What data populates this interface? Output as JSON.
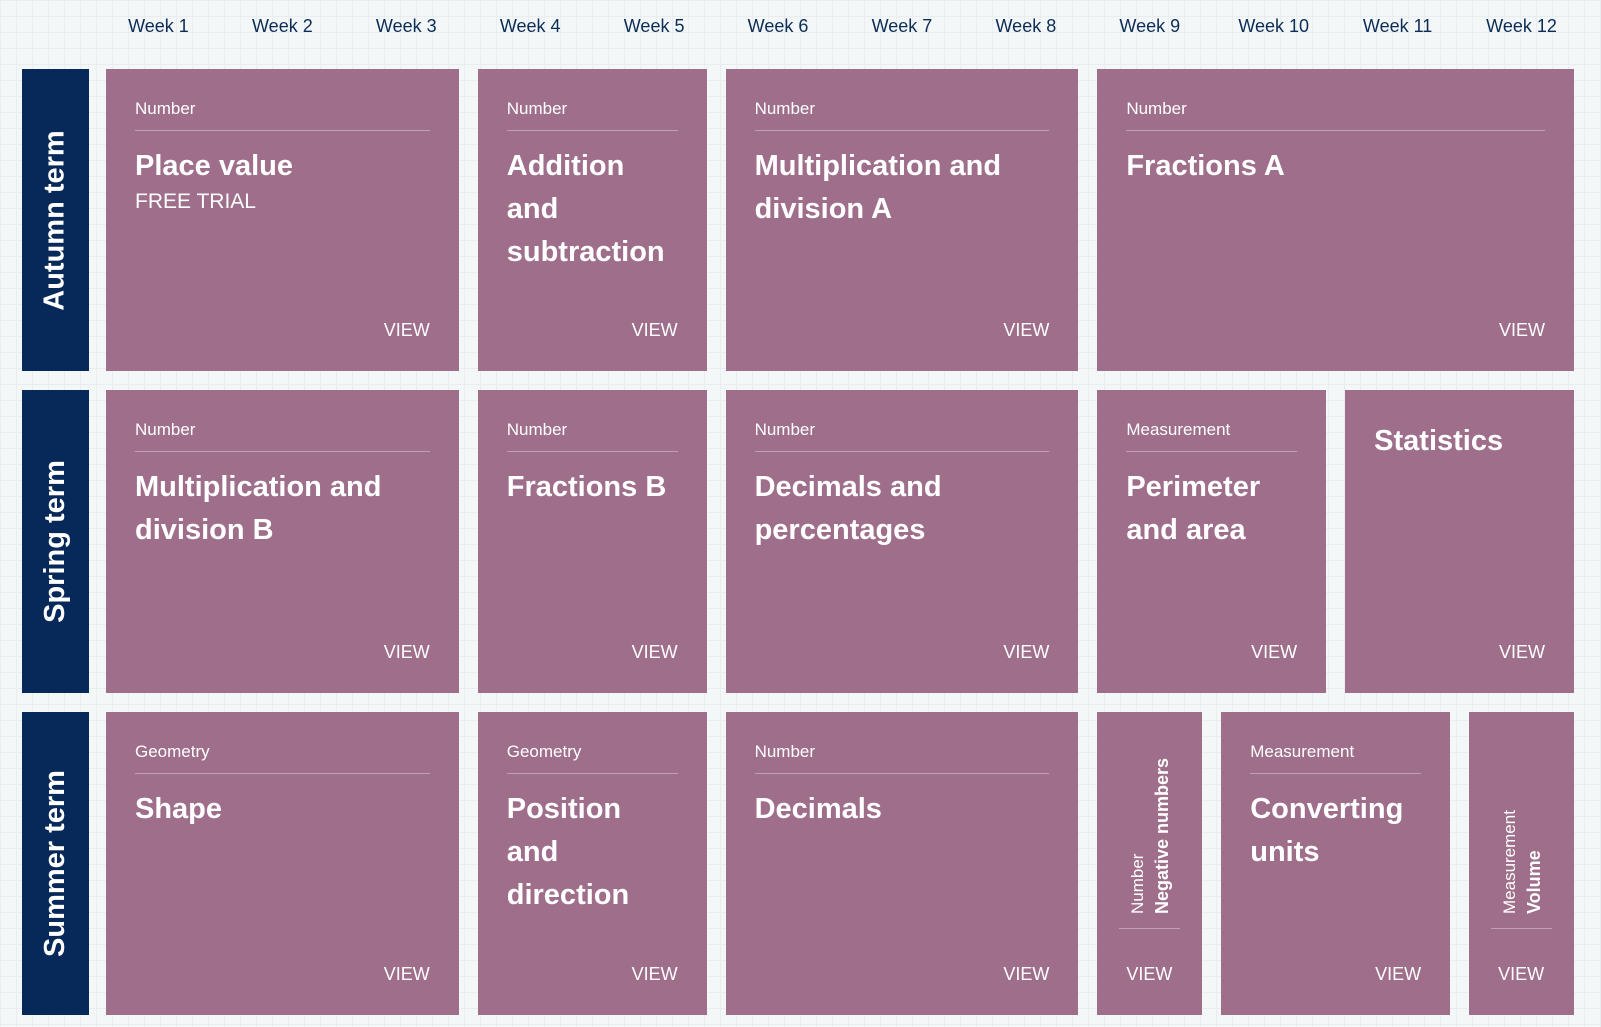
{
  "weeks": [
    "Week 1",
    "Week 2",
    "Week 3",
    "Week 4",
    "Week 5",
    "Week 6",
    "Week 7",
    "Week 8",
    "Week 9",
    "Week 10",
    "Week 11",
    "Week 12"
  ],
  "terms": [
    "Autumn term",
    "Spring term",
    "Summer term"
  ],
  "view_label": "VIEW",
  "colors": {
    "card": "#9e6e8b",
    "term": "#06295a",
    "text": "#0b2c55"
  },
  "autumn": [
    {
      "category": "Number",
      "title": "Place value",
      "subtitle": "FREE TRIAL"
    },
    {
      "category": "Number",
      "title": "Addition and subtraction"
    },
    {
      "category": "Number",
      "title": "Multiplication and division A"
    },
    {
      "category": "Number",
      "title": "Fractions A"
    }
  ],
  "spring": [
    {
      "category": "Number",
      "title": "Multiplication and division B"
    },
    {
      "category": "Number",
      "title": "Fractions B"
    },
    {
      "category": "Number",
      "title": "Decimals and percentages"
    },
    {
      "category": "Measurement",
      "title": "Perimeter and area"
    },
    {
      "title": "Statistics"
    }
  ],
  "summer": [
    {
      "category": "Geometry",
      "title": "Shape"
    },
    {
      "category": "Geometry",
      "title": "Position and direction"
    },
    {
      "category": "Number",
      "title": "Decimals"
    },
    {
      "category": "Number",
      "title": "Negative numbers"
    },
    {
      "category": "Measurement",
      "title": "Converting units"
    },
    {
      "category": "Measurement",
      "title": "Volume"
    }
  ]
}
